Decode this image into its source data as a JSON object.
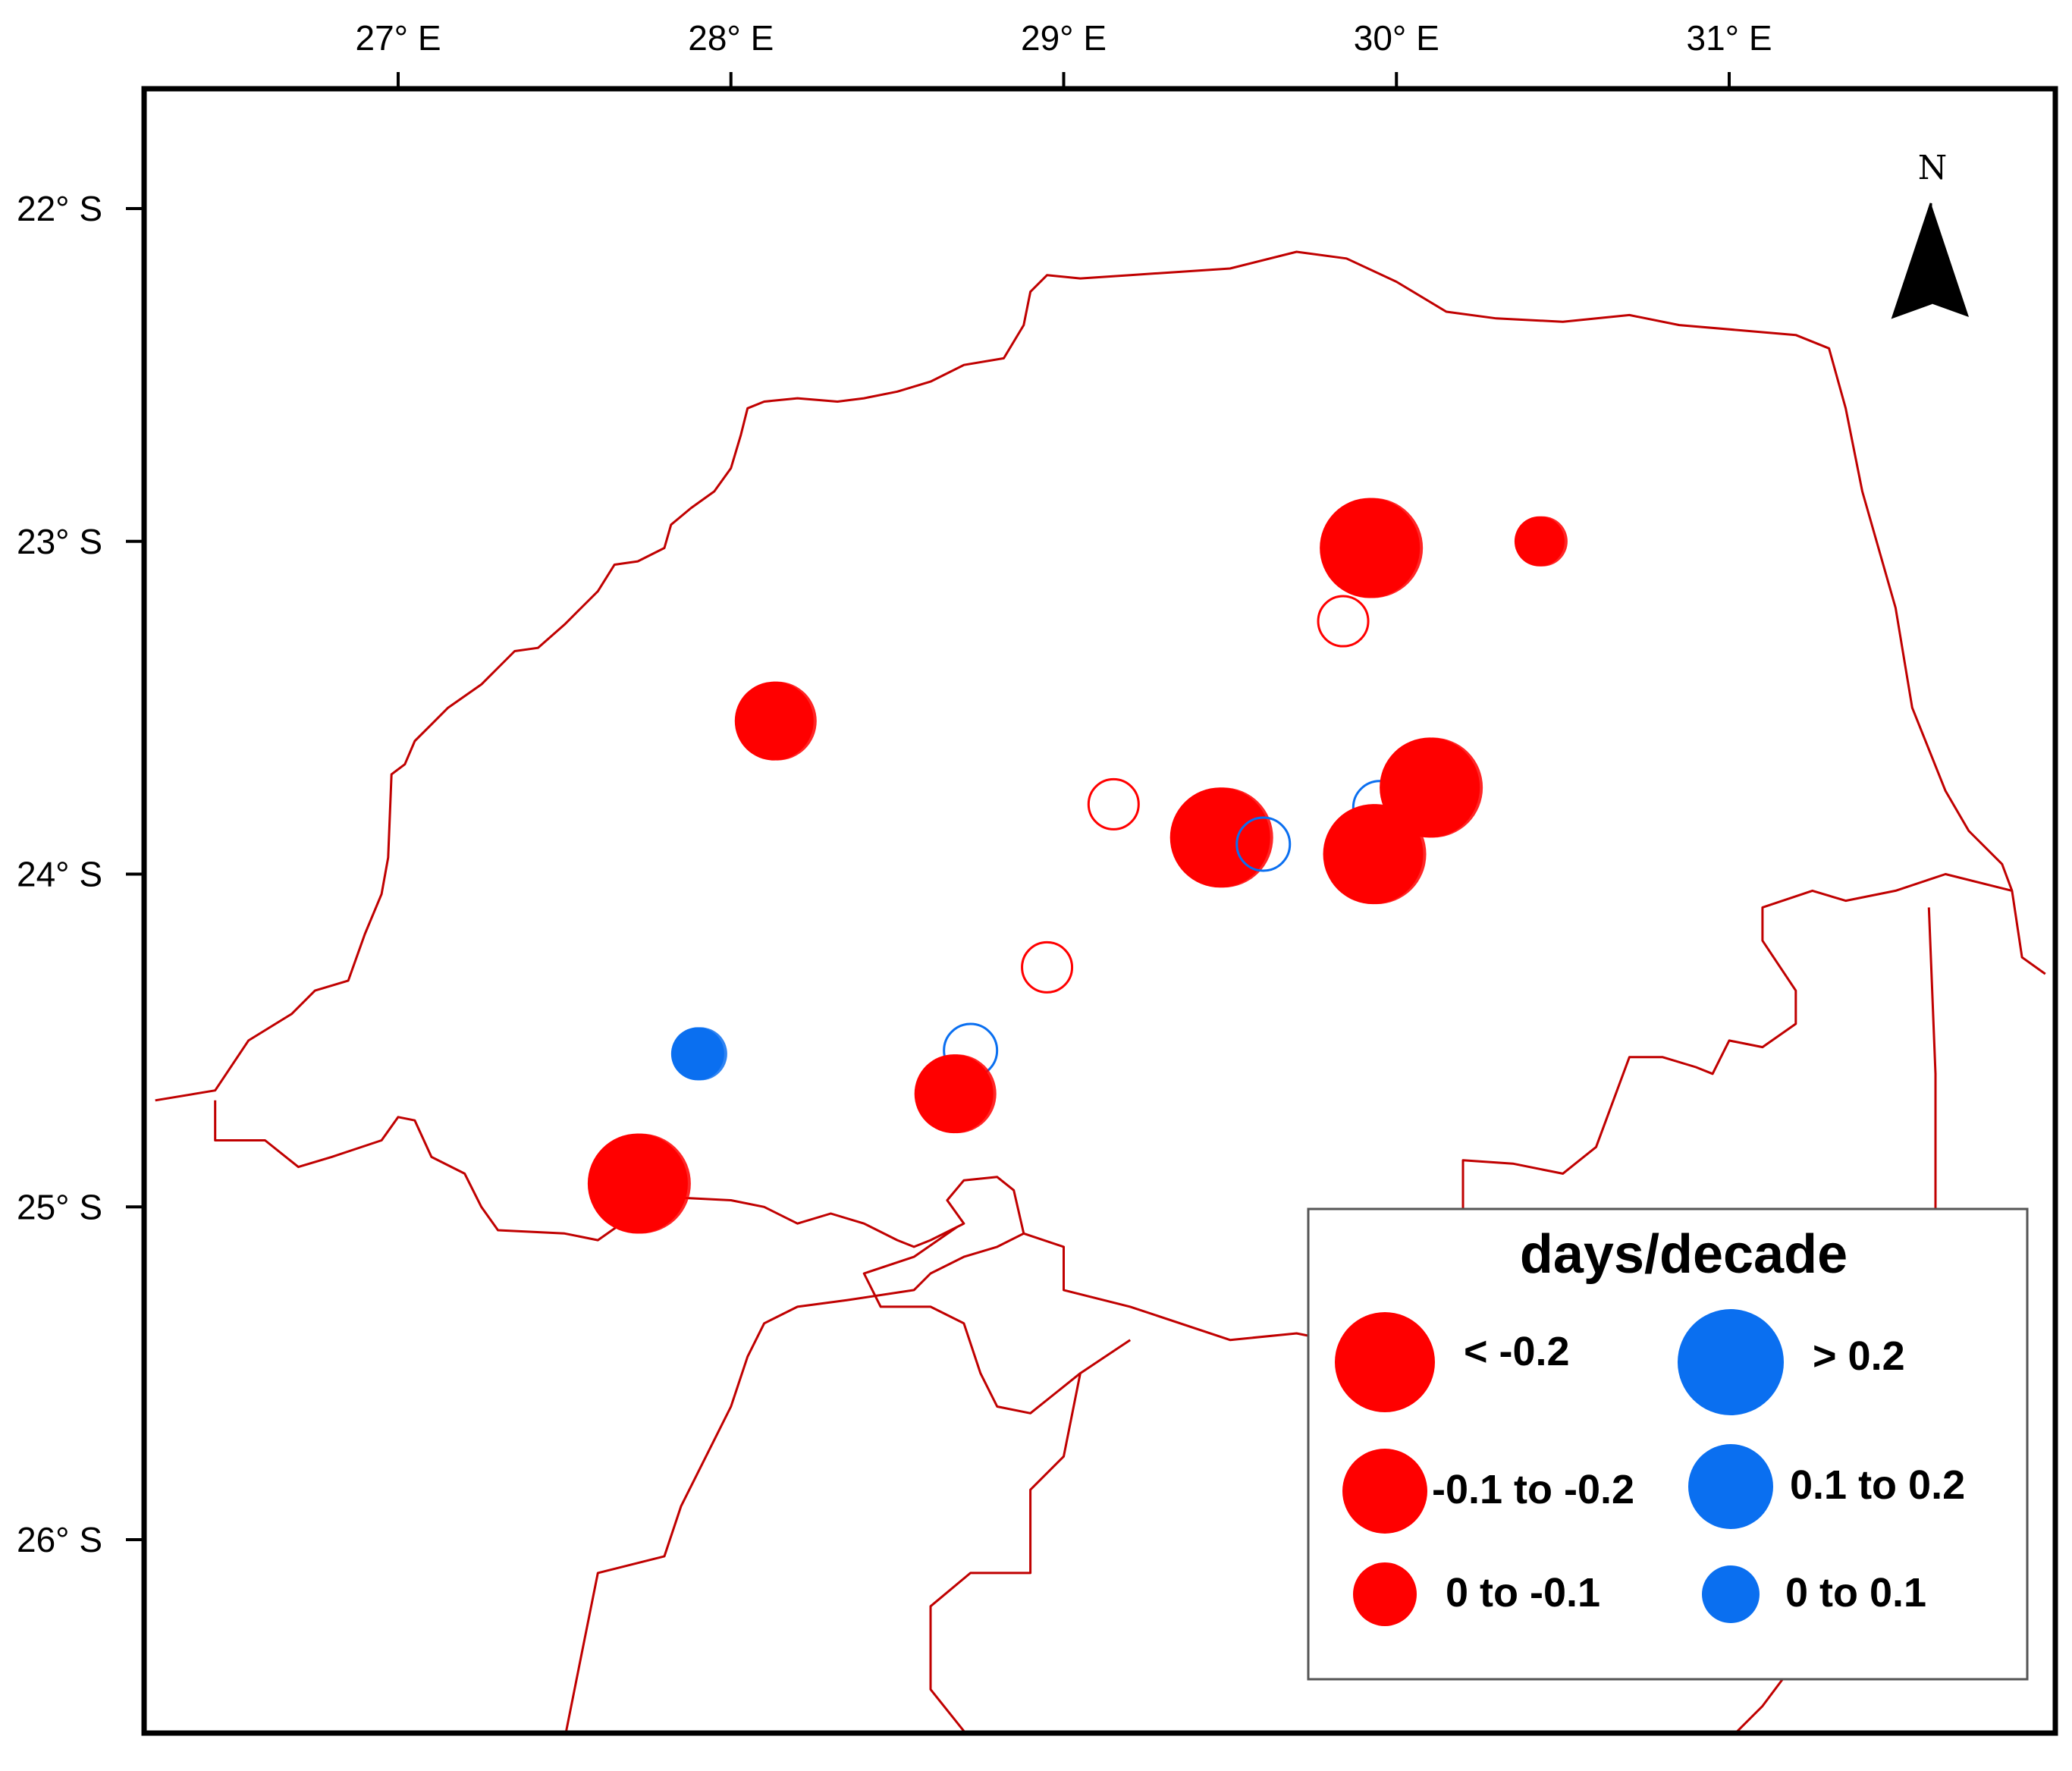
{
  "map": {
    "lon_range": [
      26.25,
      31.95
    ],
    "lat_range": [
      -26.6,
      -21.65
    ],
    "lon_ticks": [
      {
        "value": 27,
        "label": "27° E"
      },
      {
        "value": 28,
        "label": "28° E"
      },
      {
        "value": 29,
        "label": "29° E"
      },
      {
        "value": 30,
        "label": "30° E"
      },
      {
        "value": 31,
        "label": "31° E"
      }
    ],
    "lat_ticks": [
      {
        "value": -22,
        "label": "22° S"
      },
      {
        "value": -23,
        "label": "23° S"
      },
      {
        "value": -24,
        "label": "24° S"
      },
      {
        "value": -25,
        "label": "25° S"
      },
      {
        "value": -26,
        "label": "26° S"
      }
    ],
    "north_label": "N",
    "border_color": "#c00000",
    "frame_color": "#000000"
  },
  "legend": {
    "title": "days/decade",
    "classes": [
      {
        "label": "< -0.2",
        "color": "#ff0000",
        "size": "large"
      },
      {
        "label": "-0.1 to -0.2",
        "color": "#ff0000",
        "size": "medium"
      },
      {
        "label": "0 to -0.1",
        "color": "#ff0000",
        "size": "small"
      },
      {
        "label": "> 0.2",
        "color": "#0a6ff0",
        "size": "large"
      },
      {
        "label": "0.1 to 0.2",
        "color": "#0a6ff0",
        "size": "medium"
      },
      {
        "label": "0 to 0.1",
        "color": "#0a6ff0",
        "size": "small"
      }
    ]
  },
  "stations": [
    {
      "lon": 29.92,
      "lat": -23.02,
      "trend": "< -0.2",
      "filled": true
    },
    {
      "lon": 30.43,
      "lat": -23.0,
      "trend": "0 to -0.1",
      "filled": true
    },
    {
      "lon": 29.84,
      "lat": -23.24,
      "trend": "0 to -0.1",
      "filled": false
    },
    {
      "lon": 28.13,
      "lat": -23.54,
      "trend": "-0.1 to -0.2",
      "filled": true
    },
    {
      "lon": 29.15,
      "lat": -23.79,
      "trend": "0 to -0.1",
      "filled": false
    },
    {
      "lon": 29.47,
      "lat": -23.89,
      "trend": "< -0.2",
      "filled": true
    },
    {
      "lon": 29.6,
      "lat": -23.91,
      "trend": "0 to 0.1",
      "filled": false
    },
    {
      "lon": 29.95,
      "lat": -23.8,
      "trend": "0 to 0.1",
      "filled": false
    },
    {
      "lon": 30.1,
      "lat": -23.74,
      "trend": "< -0.2",
      "filled": true
    },
    {
      "lon": 29.93,
      "lat": -23.94,
      "trend": "< -0.2",
      "filled": true
    },
    {
      "lon": 28.95,
      "lat": -24.28,
      "trend": "0 to -0.1",
      "filled": false
    },
    {
      "lon": 27.9,
      "lat": -24.54,
      "trend": "0 to 0.1",
      "filled": true
    },
    {
      "lon": 28.72,
      "lat": -24.53,
      "trend": "0 to 0.1",
      "filled": false
    },
    {
      "lon": 28.67,
      "lat": -24.66,
      "trend": "-0.1 to -0.2",
      "filled": true
    },
    {
      "lon": 27.72,
      "lat": -24.93,
      "trend": "< -0.2",
      "filled": true
    }
  ],
  "borders": {
    "province_outline": [
      [
        26.27,
        -24.68
      ],
      [
        26.45,
        -24.65
      ],
      [
        26.55,
        -24.5
      ],
      [
        26.68,
        -24.42
      ],
      [
        26.75,
        -24.35
      ],
      [
        26.85,
        -24.32
      ],
      [
        26.9,
        -24.18
      ],
      [
        26.95,
        -24.06
      ],
      [
        26.97,
        -23.95
      ],
      [
        26.98,
        -23.7
      ],
      [
        27.02,
        -23.67
      ],
      [
        27.05,
        -23.6
      ],
      [
        27.1,
        -23.55
      ],
      [
        27.15,
        -23.5
      ],
      [
        27.25,
        -23.43
      ],
      [
        27.3,
        -23.38
      ],
      [
        27.35,
        -23.33
      ],
      [
        27.42,
        -23.32
      ],
      [
        27.5,
        -23.25
      ],
      [
        27.55,
        -23.2
      ],
      [
        27.6,
        -23.15
      ],
      [
        27.65,
        -23.07
      ],
      [
        27.72,
        -23.06
      ],
      [
        27.8,
        -23.02
      ],
      [
        27.82,
        -22.95
      ],
      [
        27.88,
        -22.9
      ],
      [
        27.95,
        -22.85
      ],
      [
        28.0,
        -22.78
      ],
      [
        28.03,
        -22.68
      ],
      [
        28.05,
        -22.6
      ],
      [
        28.1,
        -22.58
      ],
      [
        28.2,
        -22.57
      ],
      [
        28.32,
        -22.58
      ],
      [
        28.4,
        -22.57
      ],
      [
        28.5,
        -22.55
      ],
      [
        28.6,
        -22.52
      ],
      [
        28.7,
        -22.47
      ],
      [
        28.82,
        -22.45
      ],
      [
        28.88,
        -22.35
      ],
      [
        28.9,
        -22.25
      ],
      [
        28.95,
        -22.2
      ],
      [
        29.05,
        -22.21
      ],
      [
        29.2,
        -22.2
      ],
      [
        29.35,
        -22.19
      ],
      [
        29.5,
        -22.18
      ],
      [
        29.7,
        -22.13
      ],
      [
        29.85,
        -22.15
      ],
      [
        30.0,
        -22.22
      ],
      [
        30.15,
        -22.31
      ],
      [
        30.3,
        -22.33
      ],
      [
        30.5,
        -22.34
      ],
      [
        30.7,
        -22.32
      ],
      [
        30.85,
        -22.35
      ],
      [
        31.2,
        -22.38
      ],
      [
        31.3,
        -22.42
      ],
      [
        31.35,
        -22.6
      ],
      [
        31.4,
        -22.85
      ],
      [
        31.5,
        -23.2
      ],
      [
        31.55,
        -23.5
      ],
      [
        31.65,
        -23.75
      ],
      [
        31.72,
        -23.87
      ],
      [
        31.82,
        -23.97
      ],
      [
        31.85,
        -24.05
      ],
      [
        31.88,
        -24.25
      ],
      [
        31.95,
        -24.3
      ]
    ],
    "south_border": [
      [
        26.45,
        -24.68
      ],
      [
        26.45,
        -24.8
      ],
      [
        26.6,
        -24.8
      ],
      [
        26.7,
        -24.88
      ],
      [
        26.8,
        -24.85
      ],
      [
        26.95,
        -24.8
      ],
      [
        27.0,
        -24.73
      ],
      [
        27.05,
        -24.74
      ],
      [
        27.1,
        -24.85
      ],
      [
        27.2,
        -24.9
      ],
      [
        27.25,
        -25.0
      ],
      [
        27.3,
        -25.07
      ],
      [
        27.5,
        -25.08
      ],
      [
        27.6,
        -25.1
      ],
      [
        27.7,
        -25.03
      ],
      [
        27.78,
        -25.0
      ],
      [
        27.8,
        -24.97
      ],
      [
        28.0,
        -24.98
      ],
      [
        28.1,
        -25.0
      ],
      [
        28.2,
        -25.05
      ],
      [
        28.3,
        -25.02
      ],
      [
        28.4,
        -25.05
      ],
      [
        28.5,
        -25.1
      ],
      [
        28.55,
        -25.12
      ],
      [
        28.6,
        -25.1
      ],
      [
        28.7,
        -25.05
      ],
      [
        28.65,
        -24.98
      ],
      [
        28.7,
        -24.92
      ],
      [
        28.8,
        -24.91
      ],
      [
        28.85,
        -24.95
      ],
      [
        28.88,
        -25.08
      ],
      [
        29.0,
        -25.12
      ],
      [
        29.0,
        -25.25
      ],
      [
        29.2,
        -25.3
      ],
      [
        29.5,
        -25.4
      ],
      [
        29.7,
        -25.38
      ],
      [
        29.9,
        -25.42
      ],
      [
        30.0,
        -25.4
      ]
    ],
    "east_border": [
      [
        30.0,
        -25.42
      ],
      [
        30.1,
        -25.3
      ],
      [
        30.15,
        -25.2
      ],
      [
        30.2,
        -25.05
      ],
      [
        30.2,
        -24.86
      ],
      [
        30.35,
        -24.87
      ],
      [
        30.5,
        -24.9
      ],
      [
        30.6,
        -24.82
      ],
      [
        30.7,
        -24.55
      ],
      [
        30.8,
        -24.55
      ],
      [
        30.9,
        -24.58
      ],
      [
        30.95,
        -24.6
      ],
      [
        31.0,
        -24.5
      ],
      [
        31.1,
        -24.52
      ],
      [
        31.2,
        -24.45
      ],
      [
        31.2,
        -24.35
      ],
      [
        31.1,
        -24.2
      ],
      [
        31.1,
        -24.1
      ],
      [
        31.25,
        -24.05
      ],
      [
        31.35,
        -24.08
      ],
      [
        31.5,
        -24.05
      ],
      [
        31.65,
        -24.0
      ],
      [
        31.85,
        -24.05
      ]
    ],
    "mpumalanga_line": [
      [
        31.6,
        -24.1
      ],
      [
        31.62,
        -24.6
      ],
      [
        31.62,
        -25.2
      ],
      [
        31.62,
        -25.7
      ],
      [
        31.5,
        -26.1
      ],
      [
        31.25,
        -26.3
      ],
      [
        31.1,
        -26.5
      ],
      [
        31.0,
        -26.6
      ]
    ],
    "inner_district_1": [
      [
        27.5,
        -26.6
      ],
      [
        27.55,
        -26.35
      ],
      [
        27.6,
        -26.1
      ],
      [
        27.8,
        -26.05
      ],
      [
        27.85,
        -25.9
      ],
      [
        28.0,
        -25.6
      ],
      [
        28.05,
        -25.45
      ],
      [
        28.1,
        -25.35
      ],
      [
        28.2,
        -25.3
      ],
      [
        28.35,
        -25.28
      ],
      [
        28.55,
        -25.25
      ],
      [
        28.6,
        -25.2
      ],
      [
        28.7,
        -25.15
      ],
      [
        28.8,
        -25.12
      ],
      [
        28.88,
        -25.08
      ]
    ],
    "inner_district_2": [
      [
        28.72,
        -26.6
      ],
      [
        28.6,
        -26.45
      ],
      [
        28.6,
        -26.2
      ],
      [
        28.72,
        -26.1
      ],
      [
        28.9,
        -26.1
      ],
      [
        28.9,
        -25.85
      ],
      [
        29.0,
        -25.75
      ],
      [
        29.05,
        -25.5
      ],
      [
        29.2,
        -25.4
      ]
    ],
    "inner_district_3": [
      [
        28.68,
        -25.06
      ],
      [
        28.55,
        -25.15
      ],
      [
        28.4,
        -25.2
      ],
      [
        28.45,
        -25.3
      ],
      [
        28.6,
        -25.3
      ],
      [
        28.7,
        -25.35
      ],
      [
        28.75,
        -25.5
      ],
      [
        28.8,
        -25.6
      ],
      [
        28.9,
        -25.62
      ],
      [
        29.05,
        -25.5
      ]
    ]
  }
}
